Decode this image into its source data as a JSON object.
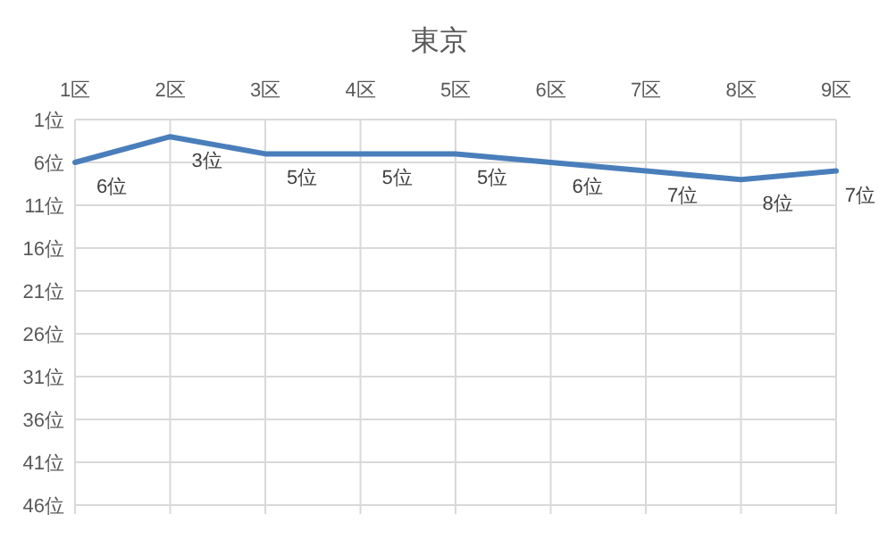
{
  "chart_data": {
    "type": "line",
    "title": "東京",
    "categories": [
      "1区",
      "2区",
      "3区",
      "4区",
      "5区",
      "6区",
      "7区",
      "8区",
      "9区"
    ],
    "series": [
      {
        "color": "#4a7ebb",
        "values": [
          6,
          3,
          5,
          5,
          5,
          6,
          7,
          8,
          7
        ],
        "value_labels": [
          "6位",
          "3位",
          "5位",
          "5位",
          "5位",
          "6位",
          "7位",
          "8位",
          "7位"
        ]
      }
    ],
    "ylim": [
      46,
      1
    ],
    "yticks": [
      {
        "value": 1,
        "label": "1位"
      },
      {
        "value": 6,
        "label": "6位"
      },
      {
        "value": 11,
        "label": "11位"
      },
      {
        "value": 16,
        "label": "16位"
      },
      {
        "value": 21,
        "label": "21位"
      },
      {
        "value": 26,
        "label": "26位"
      },
      {
        "value": 31,
        "label": "31位"
      },
      {
        "value": 36,
        "label": "36位"
      },
      {
        "value": 41,
        "label": "41位"
      },
      {
        "value": 46,
        "label": "46位"
      }
    ],
    "grid": true,
    "marker": "none",
    "line_style": "solid"
  }
}
